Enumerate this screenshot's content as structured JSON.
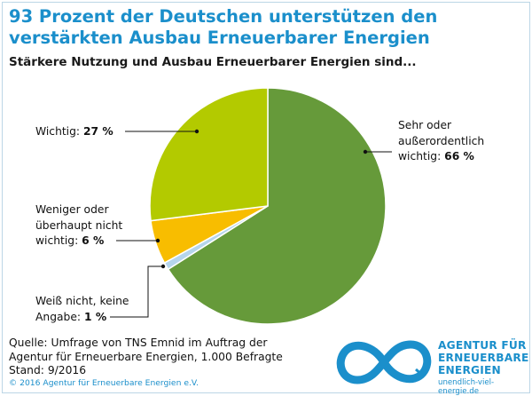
{
  "header": {
    "title": "93 Prozent der Deutschen unterstützen den verstärkten Ausbau Erneuerbarer Energien",
    "subtitle": "Stärkere Nutzung und Ausbau Erneuerbarer Energien sind..."
  },
  "chart_data": {
    "type": "pie",
    "start_angle_deg": 0,
    "direction": "clockwise",
    "slices": [
      {
        "label_lines": [
          "Sehr oder",
          "außerordentlich",
          "wichtig:"
        ],
        "value": 66,
        "display": "66 %",
        "color": "#669a3a"
      },
      {
        "label_lines": [
          "Weiß nicht, keine",
          "Angabe:"
        ],
        "value": 1,
        "display": "1 %",
        "color": "#b5d5ec"
      },
      {
        "label_lines": [
          "Weniger oder",
          "überhaupt nicht",
          "wichtig:"
        ],
        "value": 6,
        "display": "6 %",
        "color": "#f8bd00"
      },
      {
        "label_lines": [
          "Wichtig:"
        ],
        "value": 27,
        "display": "27 %",
        "color": "#b3ca00"
      }
    ]
  },
  "footer": {
    "source_lines": [
      "Quelle: Umfrage von TNS Emnid im Auftrag der",
      "Agentur für Erneuerbare Energien, 1.000 Befragte",
      "Stand: 9/2016"
    ],
    "copyright": "© 2016 Agentur für Erneuerbare Energien e.V."
  },
  "logo": {
    "icon": "infinity-logo-icon",
    "color": "#1b8fcb",
    "lines": [
      "AGENTUR FÜR",
      "ERNEUERBARE",
      "ENERGIEN"
    ],
    "url": "unendlich-viel-energie.de"
  }
}
